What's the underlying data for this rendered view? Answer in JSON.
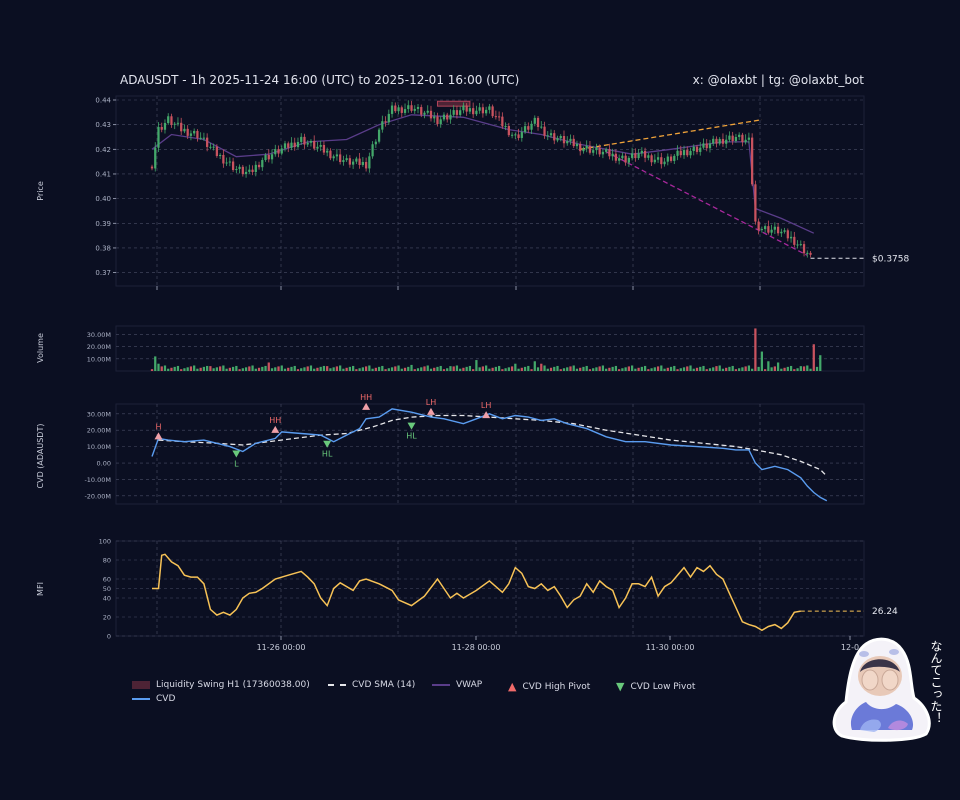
{
  "header": {
    "title": "ADAUSDT - 1h 2025-11-24 16:00 (UTC) to 2025-12-01 16:00 (UTC)",
    "handle": "x: @olaxbt | tg: @olaxbt_bot"
  },
  "chart_data": [
    {
      "panel": "price",
      "type": "candlestick",
      "ylabel": "Price",
      "ylim": [
        0.367,
        0.44
      ],
      "yticks": [
        "0.37",
        "0.38",
        "0.39",
        "0.40",
        "0.41",
        "0.42",
        "0.43",
        "0.44"
      ],
      "last_price_label": "$0.3758",
      "last_price": 0.3758,
      "close_anchors": [
        [
          0,
          0.414
        ],
        [
          2,
          0.428
        ],
        [
          5,
          0.432
        ],
        [
          9,
          0.428
        ],
        [
          14,
          0.426
        ],
        [
          20,
          0.418
        ],
        [
          26,
          0.412
        ],
        [
          30,
          0.41
        ],
        [
          34,
          0.416
        ],
        [
          40,
          0.42
        ],
        [
          46,
          0.424
        ],
        [
          52,
          0.42
        ],
        [
          60,
          0.415
        ],
        [
          66,
          0.414
        ],
        [
          70,
          0.428
        ],
        [
          74,
          0.436
        ],
        [
          80,
          0.437
        ],
        [
          88,
          0.432
        ],
        [
          96,
          0.436
        ],
        [
          104,
          0.436
        ],
        [
          108,
          0.43
        ],
        [
          112,
          0.425
        ],
        [
          118,
          0.431
        ],
        [
          122,
          0.426
        ],
        [
          126,
          0.424
        ],
        [
          132,
          0.421
        ],
        [
          138,
          0.419
        ],
        [
          146,
          0.416
        ],
        [
          150,
          0.418
        ],
        [
          158,
          0.415
        ],
        [
          164,
          0.419
        ],
        [
          170,
          0.421
        ],
        [
          176,
          0.424
        ],
        [
          180,
          0.425
        ],
        [
          184,
          0.423
        ],
        [
          186,
          0.39
        ],
        [
          188,
          0.388
        ],
        [
          193,
          0.387
        ],
        [
          198,
          0.383
        ],
        [
          202,
          0.378
        ],
        [
          203,
          0.3758
        ]
      ],
      "wick_spread": 0.0025,
      "vwap": [
        [
          0,
          0.42
        ],
        [
          6,
          0.426
        ],
        [
          16,
          0.424
        ],
        [
          26,
          0.417
        ],
        [
          36,
          0.418
        ],
        [
          48,
          0.423
        ],
        [
          60,
          0.424
        ],
        [
          70,
          0.43
        ],
        [
          80,
          0.434
        ],
        [
          96,
          0.433
        ],
        [
          110,
          0.428
        ],
        [
          120,
          0.426
        ],
        [
          132,
          0.422
        ],
        [
          148,
          0.418
        ],
        [
          160,
          0.42
        ],
        [
          176,
          0.423
        ],
        [
          184,
          0.423
        ],
        [
          186,
          0.396
        ],
        [
          194,
          0.392
        ],
        [
          204,
          0.386
        ]
      ],
      "trendline_up": [
        [
          132,
          0.42
        ],
        [
          188,
          0.432
        ]
      ],
      "trendline_down": [
        [
          140,
          0.419
        ],
        [
          202,
          0.377
        ]
      ],
      "liquidity_zone": {
        "x": [
          88,
          98
        ],
        "y": [
          0.4375,
          0.4395
        ]
      }
    },
    {
      "panel": "volume",
      "type": "bar",
      "ylabel": "Volume",
      "ylim": [
        0,
        37000000
      ],
      "yticks": [
        10000000,
        20000000,
        30000000
      ],
      "ytick_labels": [
        "10.00M",
        "20.00M",
        "30.00M"
      ],
      "spikes": [
        [
          1,
          12000000
        ],
        [
          2,
          6000000
        ],
        [
          18,
          4000000
        ],
        [
          36,
          7000000
        ],
        [
          54,
          4000000
        ],
        [
          80,
          5000000
        ],
        [
          92,
          4000000
        ],
        [
          100,
          9000000
        ],
        [
          112,
          6000000
        ],
        [
          118,
          8000000
        ],
        [
          120,
          6000000
        ],
        [
          174,
          4000000
        ],
        [
          186,
          35000000
        ],
        [
          188,
          16000000
        ],
        [
          190,
          8000000
        ],
        [
          193,
          7000000
        ],
        [
          200,
          4000000
        ],
        [
          204,
          22000000
        ],
        [
          206,
          13000000
        ]
      ]
    },
    {
      "panel": "cvd",
      "type": "line",
      "ylabel": "CVD (ADAUSDT)",
      "ylim": [
        -25000000,
        36000000
      ],
      "yticks": [
        -20000000,
        -10000000,
        0,
        10000000,
        20000000,
        30000000
      ],
      "ytick_labels": [
        "-20.00M",
        "-10.00M",
        "0.00",
        "10.00M",
        "20.00M",
        "30.00M"
      ],
      "series": [
        {
          "name": "CVD",
          "points": [
            [
              0,
              4000000
            ],
            [
              2,
              15000000
            ],
            [
              5,
              14000000
            ],
            [
              10,
              13000000
            ],
            [
              16,
              14000000
            ],
            [
              20,
              12000000
            ],
            [
              24,
              10000000
            ],
            [
              28,
              7000000
            ],
            [
              32,
              12000000
            ],
            [
              38,
              15000000
            ],
            [
              40,
              19000000
            ],
            [
              46,
              18000000
            ],
            [
              52,
              17000000
            ],
            [
              56,
              13000000
            ],
            [
              60,
              17000000
            ],
            [
              64,
              21000000
            ],
            [
              66,
              27000000
            ],
            [
              70,
              28000000
            ],
            [
              74,
              33000000
            ],
            [
              80,
              31000000
            ],
            [
              86,
              28000000
            ],
            [
              90,
              27000000
            ],
            [
              96,
              24000000
            ],
            [
              100,
              27000000
            ],
            [
              104,
              30000000
            ],
            [
              108,
              27000000
            ],
            [
              112,
              29000000
            ],
            [
              116,
              28000000
            ],
            [
              120,
              26000000
            ],
            [
              124,
              27000000
            ],
            [
              128,
              24000000
            ],
            [
              134,
              21000000
            ],
            [
              140,
              16000000
            ],
            [
              146,
              13000000
            ],
            [
              152,
              13000000
            ],
            [
              160,
              11000000
            ],
            [
              168,
              10000000
            ],
            [
              176,
              9000000
            ],
            [
              180,
              8000000
            ],
            [
              184,
              8000000
            ],
            [
              186,
              0
            ],
            [
              188,
              -4000000
            ],
            [
              192,
              -2000000
            ],
            [
              196,
              -4000000
            ],
            [
              200,
              -9000000
            ],
            [
              202,
              -14000000
            ],
            [
              204,
              -18000000
            ],
            [
              206,
              -21000000
            ],
            [
              208,
              -23000000
            ]
          ]
        },
        {
          "name": "CVD SMA (14)",
          "points": [
            [
              2,
              14000000
            ],
            [
              10,
              13000000
            ],
            [
              20,
              12000000
            ],
            [
              28,
              11000000
            ],
            [
              36,
              13000000
            ],
            [
              44,
              15000000
            ],
            [
              52,
              17000000
            ],
            [
              60,
              18000000
            ],
            [
              68,
              22000000
            ],
            [
              74,
              26000000
            ],
            [
              80,
              28000000
            ],
            [
              88,
              29000000
            ],
            [
              96,
              29000000
            ],
            [
              104,
              28000000
            ],
            [
              112,
              27000000
            ],
            [
              120,
              26000000
            ],
            [
              130,
              24000000
            ],
            [
              140,
              20000000
            ],
            [
              150,
              17000000
            ],
            [
              160,
              14000000
            ],
            [
              170,
              12000000
            ],
            [
              180,
              10000000
            ],
            [
              186,
              8000000
            ],
            [
              194,
              5000000
            ],
            [
              200,
              1000000
            ],
            [
              206,
              -4000000
            ],
            [
              208,
              -8000000
            ]
          ]
        }
      ],
      "pivots": [
        {
          "label": "H",
          "kind": "high",
          "x": 2,
          "y": 15000000
        },
        {
          "label": "L",
          "kind": "low",
          "x": 26,
          "y": 7000000
        },
        {
          "label": "HH",
          "kind": "high",
          "x": 38,
          "y": 19000000
        },
        {
          "label": "HL",
          "kind": "low",
          "x": 54,
          "y": 13000000
        },
        {
          "label": "HH",
          "kind": "high",
          "x": 66,
          "y": 33000000
        },
        {
          "label": "HL",
          "kind": "low",
          "x": 80,
          "y": 24000000
        },
        {
          "label": "LH",
          "kind": "high",
          "x": 86,
          "y": 30000000
        },
        {
          "label": "LH",
          "kind": "high",
          "x": 103,
          "y": 28000000
        }
      ]
    },
    {
      "panel": "mfi",
      "type": "line",
      "ylabel": "MFI",
      "ylim": [
        0,
        100
      ],
      "yticks": [
        0,
        20,
        40,
        50,
        60,
        80,
        100
      ],
      "last_value_label": "26.24",
      "series": [
        {
          "name": "MFI",
          "points": [
            [
              0,
              50
            ],
            [
              2,
              50
            ],
            [
              3,
              85
            ],
            [
              4,
              86
            ],
            [
              6,
              78
            ],
            [
              8,
              74
            ],
            [
              10,
              64
            ],
            [
              12,
              62
            ],
            [
              14,
              62
            ],
            [
              16,
              55
            ],
            [
              18,
              28
            ],
            [
              20,
              22
            ],
            [
              22,
              25
            ],
            [
              24,
              22
            ],
            [
              26,
              28
            ],
            [
              28,
              40
            ],
            [
              30,
              45
            ],
            [
              32,
              46
            ],
            [
              34,
              50
            ],
            [
              38,
              60
            ],
            [
              42,
              64
            ],
            [
              46,
              68
            ],
            [
              48,
              62
            ],
            [
              50,
              55
            ],
            [
              52,
              40
            ],
            [
              54,
              32
            ],
            [
              56,
              50
            ],
            [
              58,
              56
            ],
            [
              62,
              48
            ],
            [
              64,
              58
            ],
            [
              66,
              60
            ],
            [
              70,
              55
            ],
            [
              74,
              48
            ],
            [
              76,
              38
            ],
            [
              80,
              32
            ],
            [
              84,
              42
            ],
            [
              88,
              60
            ],
            [
              92,
              40
            ],
            [
              94,
              45
            ],
            [
              96,
              40
            ],
            [
              100,
              48
            ],
            [
              104,
              58
            ],
            [
              108,
              46
            ],
            [
              110,
              55
            ],
            [
              112,
              72
            ],
            [
              114,
              66
            ],
            [
              116,
              52
            ],
            [
              118,
              50
            ],
            [
              120,
              55
            ],
            [
              122,
              48
            ],
            [
              124,
              52
            ],
            [
              126,
              42
            ],
            [
              128,
              30
            ],
            [
              130,
              38
            ],
            [
              132,
              42
            ],
            [
              134,
              55
            ],
            [
              136,
              46
            ],
            [
              138,
              58
            ],
            [
              140,
              52
            ],
            [
              142,
              48
            ],
            [
              144,
              30
            ],
            [
              146,
              40
            ],
            [
              148,
              55
            ],
            [
              150,
              55
            ],
            [
              152,
              52
            ],
            [
              154,
              62
            ],
            [
              156,
              42
            ],
            [
              158,
              52
            ],
            [
              160,
              56
            ],
            [
              162,
              64
            ],
            [
              164,
              72
            ],
            [
              166,
              62
            ],
            [
              168,
              72
            ],
            [
              170,
              68
            ],
            [
              172,
              74
            ],
            [
              174,
              65
            ],
            [
              176,
              60
            ],
            [
              178,
              45
            ],
            [
              180,
              30
            ],
            [
              182,
              15
            ],
            [
              184,
              12
            ],
            [
              186,
              10
            ],
            [
              188,
              6
            ],
            [
              190,
              10
            ],
            [
              192,
              12
            ],
            [
              194,
              8
            ],
            [
              196,
              14
            ],
            [
              198,
              25
            ],
            [
              200,
              26.24
            ]
          ]
        }
      ],
      "xticks": [
        "11-26 00:00",
        "11-28 00:00",
        "11-30 00:00",
        "12-0"
      ]
    }
  ],
  "legend": {
    "items": [
      {
        "label": "Liquidity Swing H1 (17360038.00)",
        "color": "#5a2a3c"
      },
      {
        "label": "CVD SMA (14)",
        "color": "#e6e6ea"
      },
      {
        "label": "VWAP",
        "color": "#5a3d8a"
      },
      {
        "label": "CVD High Pivot",
        "color": "#f06a6a"
      },
      {
        "label": "CVD Low Pivot",
        "color": "#69c97c"
      },
      {
        "label": "CVD",
        "color": "#5a9cf0"
      }
    ]
  },
  "mascot": {
    "caption": "なんてこった！"
  },
  "colors": {
    "background": "#0b0f22",
    "up_candle": "#43a86a",
    "down_candle": "#c9535f",
    "mfi_line": "#f7c256",
    "trend_up": "#f0a33a",
    "trend_down": "#a8289c",
    "grid": "#4a4e66",
    "axis": "#aab0c4"
  }
}
